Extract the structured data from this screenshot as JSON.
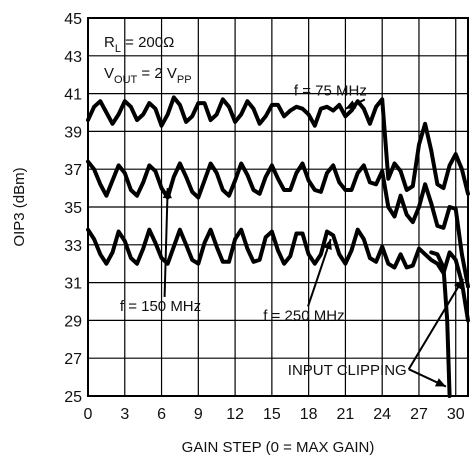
{
  "chart_data": {
    "type": "line",
    "xlabel": "GAIN STEP (0 = MAX GAIN)",
    "ylabel": "OIP3 (dBm)",
    "xlim": [
      0,
      31
    ],
    "ylim": [
      25,
      45
    ],
    "x_ticks": [
      0,
      3,
      6,
      9,
      12,
      15,
      18,
      21,
      24,
      27,
      30
    ],
    "y_ticks": [
      25,
      27,
      29,
      31,
      33,
      35,
      37,
      39,
      41,
      43,
      45
    ],
    "grid": true,
    "legend": "none",
    "conditions": {
      "load": {
        "main": "R",
        "sub": "L",
        "rest": " = 200Ω"
      },
      "output": {
        "main": "V",
        "sub": "OUT",
        "rest": " = 2 V",
        "sub2": "PP"
      }
    },
    "annotations": [
      {
        "id": "f75",
        "text": "f = 75 MHz",
        "x": 16.8,
        "y": 40.9,
        "arrow_to": [
          21.0,
          40.2
        ]
      },
      {
        "id": "f150",
        "text": "f = 150 MHz",
        "x": 2.6,
        "y": 29.5,
        "arrow_to": [
          6.5,
          36.0
        ]
      },
      {
        "id": "f250",
        "text": "f = 250 MHz",
        "x": 14.3,
        "y": 29.0,
        "arrow_to": [
          19.8,
          33.3
        ]
      },
      {
        "id": "clip",
        "text": "INPUT CLIPPING",
        "x": 16.3,
        "y": 26.1,
        "arrow_to": [
          [
            29.2,
            25.5
          ],
          [
            30.6,
            31.2
          ]
        ]
      }
    ],
    "series": [
      {
        "name": "f = 75 MHz",
        "x": [
          0,
          0.5,
          1,
          1.5,
          2,
          2.5,
          3,
          3.5,
          4,
          4.5,
          5,
          5.5,
          6,
          6.5,
          7,
          7.5,
          8,
          8.5,
          9,
          9.5,
          10,
          10.5,
          11,
          11.5,
          12,
          12.5,
          13,
          13.5,
          14,
          14.5,
          15,
          15.5,
          16,
          16.5,
          17,
          17.5,
          18,
          18.5,
          19,
          19.5,
          20,
          20.5,
          21,
          21.5,
          22,
          22.5,
          23,
          23.5,
          24,
          24.5,
          25,
          25.5,
          26,
          26.5,
          27,
          27.5,
          28,
          28.5,
          29,
          29.5,
          30,
          30.5,
          31
        ],
        "values": [
          39.6,
          40.3,
          40.6,
          40.0,
          39.4,
          39.9,
          40.6,
          40.3,
          39.6,
          39.9,
          40.5,
          40.2,
          39.3,
          39.9,
          40.8,
          40.4,
          39.5,
          39.8,
          40.5,
          40.5,
          39.6,
          39.9,
          40.7,
          40.3,
          39.5,
          39.9,
          40.6,
          40.2,
          39.4,
          39.8,
          40.4,
          40.4,
          39.8,
          40.1,
          40.3,
          40.2,
          39.9,
          39.3,
          40.2,
          40.3,
          40.1,
          40.4,
          39.8,
          40.1,
          40.6,
          40.2,
          39.4,
          40.3,
          40.7,
          36.5,
          37.3,
          36.9,
          35.9,
          36.1,
          38.3,
          39.4,
          38.0,
          36.2,
          36.0,
          37.2,
          37.8,
          37.0,
          35.7
        ]
      },
      {
        "name": "f = 150 MHz",
        "x": [
          0,
          0.5,
          1,
          1.5,
          2,
          2.5,
          3,
          3.5,
          4,
          4.5,
          5,
          5.5,
          6,
          6.5,
          7,
          7.5,
          8,
          8.5,
          9,
          9.5,
          10,
          10.5,
          11,
          11.5,
          12,
          12.5,
          13,
          13.5,
          14,
          14.5,
          15,
          15.5,
          16,
          16.5,
          17,
          17.5,
          18,
          18.5,
          19,
          19.5,
          20,
          20.5,
          21,
          21.5,
          22,
          22.5,
          23,
          23.5,
          24,
          24.5,
          25,
          25.5,
          26,
          26.5,
          27,
          27.5,
          28,
          28.5,
          29,
          29.5,
          30,
          30.5,
          31
        ],
        "values": [
          37.4,
          37.0,
          36.2,
          35.6,
          36.4,
          37.2,
          36.8,
          35.9,
          35.6,
          36.3,
          37.2,
          36.9,
          36.0,
          35.5,
          36.6,
          37.3,
          36.6,
          35.8,
          35.5,
          36.4,
          37.3,
          36.8,
          35.9,
          35.6,
          36.4,
          37.3,
          36.7,
          35.9,
          35.7,
          36.6,
          37.2,
          36.5,
          35.9,
          35.9,
          36.8,
          37.3,
          36.4,
          35.9,
          35.8,
          36.8,
          37.2,
          36.3,
          35.9,
          35.9,
          36.8,
          37.2,
          36.3,
          36.2,
          36.9,
          35.0,
          34.5,
          35.6,
          34.6,
          34.2,
          35.0,
          36.2,
          35.2,
          34.0,
          33.9,
          35.0,
          34.9,
          32.5,
          30.8
        ]
      },
      {
        "name": "f = 250 MHz",
        "x": [
          0,
          0.5,
          1,
          1.5,
          2,
          2.5,
          3,
          3.5,
          4,
          4.5,
          5,
          5.5,
          6,
          6.5,
          7,
          7.5,
          8,
          8.5,
          9,
          9.5,
          10,
          10.5,
          11,
          11.5,
          12,
          12.5,
          13,
          13.5,
          14,
          14.5,
          15,
          15.5,
          16,
          16.5,
          17,
          17.5,
          18,
          18.5,
          19,
          19.5,
          20,
          20.5,
          21,
          21.5,
          22,
          22.5,
          23,
          23.5,
          24,
          24.5,
          25,
          25.5,
          26,
          26.5,
          27,
          27.5,
          28,
          28.5,
          29,
          29.5,
          30,
          30.5,
          31
        ],
        "values": [
          33.8,
          33.3,
          32.5,
          32.0,
          32.6,
          33.7,
          33.2,
          32.3,
          32.0,
          32.8,
          33.8,
          33.1,
          32.3,
          32.0,
          32.9,
          33.8,
          33.0,
          32.2,
          32.0,
          33.1,
          33.8,
          32.9,
          32.1,
          32.1,
          33.3,
          33.8,
          32.8,
          32.1,
          32.2,
          33.4,
          33.7,
          32.7,
          32.0,
          32.4,
          33.6,
          33.6,
          32.5,
          32.0,
          32.5,
          33.7,
          33.5,
          32.5,
          32.0,
          32.7,
          33.8,
          33.3,
          32.3,
          32.1,
          32.9,
          32.0,
          31.8,
          32.5,
          31.8,
          31.9,
          32.8,
          32.5,
          32.2,
          32.0,
          31.5,
          32.6,
          32.2,
          31.0,
          29.0
        ]
      },
      {
        "name": "",
        "x": [
          28.0,
          28.5,
          29.0,
          29.3,
          29.5
        ],
        "values": [
          32.6,
          32.5,
          31.8,
          29.0,
          25.0
        ]
      }
    ]
  }
}
